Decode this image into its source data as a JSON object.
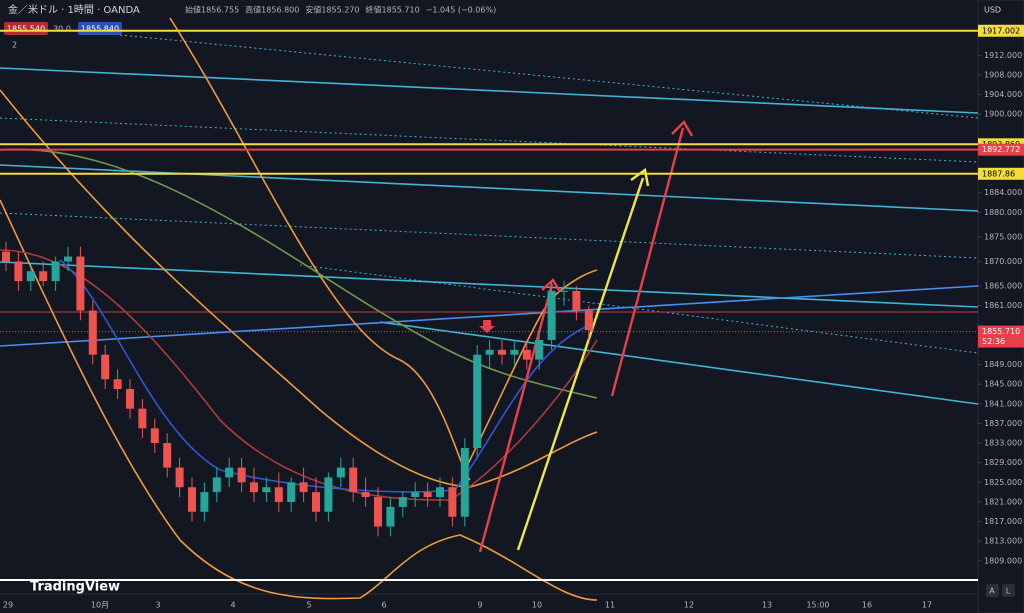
{
  "chart_data": {
    "type": "candlestick",
    "title": "金／米ドル · 1時間 · OANDA",
    "info": [
      "始値1856.755",
      "高値1856.800",
      "安値1855.270",
      "終値1855.710",
      "−1.045 (−0.06%)"
    ],
    "order_panel": [
      "1855.540",
      "30.0",
      "1855.840"
    ],
    "indicator_count": "2",
    "currency": "USD",
    "brand": "TradingView",
    "scale_buttons": [
      "A",
      "L"
    ],
    "time_labels": [
      "29",
      "10月",
      "3",
      "4",
      "5",
      "6",
      "9",
      "10",
      "11",
      "12",
      "13",
      "15:00",
      "16",
      "17"
    ],
    "ylim": [
      1805.1,
      1919.6
    ],
    "yticks": [
      {
        "value": 1912,
        "label": "1912.000"
      },
      {
        "value": 1908,
        "label": "1908.000"
      },
      {
        "value": 1904,
        "label": "1904.000"
      },
      {
        "value": 1900,
        "label": "1900.000"
      },
      {
        "value": 1884,
        "label": "1884.000"
      },
      {
        "value": 1880,
        "label": "1880.000"
      },
      {
        "value": 1875,
        "label": "1875.000"
      },
      {
        "value": 1870,
        "label": "1870.000"
      },
      {
        "value": 1865,
        "label": "1865.000"
      },
      {
        "value": 1861,
        "label": "1861.000"
      },
      {
        "value": 1849,
        "label": "1849.000"
      },
      {
        "value": 1845,
        "label": "1845.000"
      },
      {
        "value": 1841,
        "label": "1841.000"
      },
      {
        "value": 1837,
        "label": "1837.000"
      },
      {
        "value": 1833,
        "label": "1833.000"
      },
      {
        "value": 1829,
        "label": "1829.000"
      },
      {
        "value": 1825,
        "label": "1825.000"
      },
      {
        "value": 1821,
        "label": "1821.000"
      },
      {
        "value": 1817,
        "label": "1817.000"
      },
      {
        "value": 1813,
        "label": "1813.000"
      },
      {
        "value": 1809,
        "label": "1809.000"
      }
    ],
    "levels": [
      {
        "value": 1917.002,
        "color": "#f2dd3c"
      },
      {
        "value": 1893.869,
        "color": "#f2dd3c"
      },
      {
        "value": 1892.772,
        "color": "#e8404a"
      },
      {
        "value": 1887.86,
        "color": "#f2dd3c"
      }
    ],
    "last_price": {
      "value": 1855.71,
      "label": "1855.710",
      "countdown": "52:36",
      "color": "#e8404a"
    },
    "up_color": "#26a69a",
    "down_color": "#ef5350",
    "open": [
      1872,
      1870,
      1866,
      1868,
      1866,
      1870,
      1871,
      1860,
      1851,
      1846,
      1844,
      1840,
      1836,
      1833,
      1828,
      1824,
      1819,
      1823,
      1826,
      1828,
      1825,
      1823,
      1824,
      1821,
      1825,
      1823,
      1819,
      1826,
      1828,
      1823,
      1822,
      1816,
      1820,
      1822,
      1823,
      1822,
      1824,
      1818,
      1832,
      1851,
      1852,
      1851,
      1852,
      1850,
      1854,
      1864,
      1864,
      1860
    ],
    "high": [
      1874,
      1872,
      1869,
      1870,
      1871,
      1873,
      1873,
      1862,
      1853,
      1848,
      1846,
      1842,
      1838,
      1835,
      1830,
      1826,
      1825,
      1828,
      1830,
      1830,
      1828,
      1826,
      1827,
      1826,
      1828,
      1826,
      1827,
      1830,
      1830,
      1826,
      1824,
      1822,
      1823,
      1825,
      1825,
      1826,
      1826,
      1834,
      1853,
      1854,
      1854,
      1854,
      1854,
      1856,
      1866,
      1866,
      1865,
      1861
    ],
    "low": [
      1868,
      1864,
      1864,
      1865,
      1864,
      1868,
      1858,
      1849,
      1844,
      1842,
      1838,
      1834,
      1831,
      1826,
      1822,
      1817,
      1817,
      1821,
      1824,
      1823,
      1821,
      1821,
      1819,
      1819,
      1821,
      1817,
      1817,
      1824,
      1821,
      1820,
      1814,
      1814,
      1818,
      1820,
      1820,
      1820,
      1816,
      1816,
      1830,
      1848,
      1849,
      1849,
      1848,
      1848,
      1852,
      1861,
      1858,
      1854
    ],
    "close": [
      1870,
      1866,
      1868,
      1866,
      1870,
      1871,
      1860,
      1851,
      1846,
      1844,
      1840,
      1836,
      1833,
      1828,
      1824,
      1819,
      1823,
      1826,
      1828,
      1825,
      1823,
      1824,
      1821,
      1825,
      1823,
      1819,
      1826,
      1828,
      1823,
      1822,
      1816,
      1820,
      1822,
      1823,
      1822,
      1824,
      1818,
      1832,
      1851,
      1852,
      1851,
      1852,
      1850,
      1854,
      1864,
      1864,
      1860,
      1856
    ]
  }
}
